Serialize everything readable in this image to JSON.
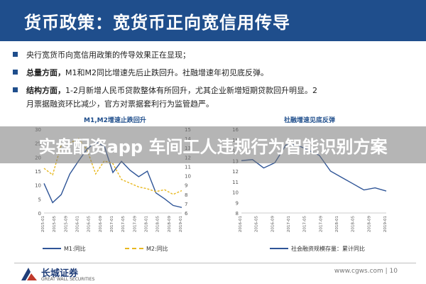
{
  "header": {
    "title": "货币政策：宽货币正向宽信用传导"
  },
  "bullets": {
    "b1": {
      "text": "央行宽货币向宽信用政策的传导效果正在显现；"
    },
    "b2": {
      "head": "总量方面，",
      "text": "M1和M2同比增速先后止跌回升。社融增速年初见底反弹。"
    },
    "b3": {
      "head": "结构方面，",
      "text": "1-2月新增人民币贷款整体有所回升，尤其企业新增短期贷款回升明显。2",
      "text2": "月票据融资环比减少，官方对票据套利行为监管趋严。"
    }
  },
  "overlay": {
    "text": "实盘配资app 车间工人违规行为智能识别方案"
  },
  "colors": {
    "brand": "#1f4e8c",
    "m1": "#2f5597",
    "m2": "#e8b820",
    "social": "#2f5597"
  },
  "chart_data": [
    {
      "type": "line",
      "title": "M1,M2增速止跌回升",
      "x": [
        "2015/1",
        "2015/4",
        "2015/7",
        "2015/10",
        "2016/1",
        "2016/4",
        "2016/7",
        "2016/10",
        "2017/1",
        "2017/4",
        "2017/7",
        "2017/10",
        "2018/1",
        "2018/4",
        "2018/7",
        "2018/10",
        "2019/1"
      ],
      "series": [
        {
          "name": "M1:同比",
          "axis": "left",
          "values": [
            10.6,
            3.7,
            6.6,
            14.0,
            18.6,
            22.9,
            25.4,
            24.0,
            14.5,
            18.5,
            15.3,
            13.0,
            15.0,
            7.2,
            5.1,
            2.7,
            2.0
          ]
        },
        {
          "name": "M2:同比",
          "axis": "right",
          "values": [
            10.8,
            10.1,
            13.3,
            13.5,
            14.0,
            12.8,
            10.2,
            11.6,
            11.3,
            9.6,
            9.2,
            8.8,
            8.6,
            8.3,
            8.5,
            8.0,
            8.4
          ]
        }
      ],
      "y_left": {
        "ticks": [
          "0",
          "5",
          "10",
          "15",
          "20",
          "25",
          "30"
        ],
        "ylim": [
          0,
          30
        ]
      },
      "y_right": {
        "ticks": [
          "6",
          "7",
          "8",
          "9",
          "10",
          "11",
          "12",
          "13",
          "14",
          "15"
        ],
        "ylim": [
          6,
          15
        ]
      },
      "x_ticks": [
        "2015-01",
        "2015-05",
        "2015-09",
        "2016-01",
        "2016-05",
        "2016-09",
        "2017-01",
        "2017-05",
        "2017-09",
        "2018-01",
        "2018-05",
        "2018-09",
        "2019-01"
      ]
    },
    {
      "type": "line",
      "title": "社融增速见底反弹",
      "x": [
        "2016-01",
        "2016-04",
        "2016-07",
        "2016-10",
        "2017-01",
        "2017-04",
        "2017-07",
        "2017-10",
        "2018-01",
        "2018-04",
        "2018-07",
        "2018-10",
        "2019-01",
        "2019-02"
      ],
      "series": [
        {
          "name": "社会融资规模存量：累计同比",
          "values": [
            13.0,
            13.1,
            12.3,
            12.8,
            14.5,
            14.5,
            14.0,
            13.5,
            12.0,
            11.4,
            10.8,
            10.2,
            10.4,
            10.1
          ]
        }
      ],
      "y": {
        "ticks": [
          "8",
          "9",
          "10",
          "11",
          "12",
          "13",
          "14",
          "15",
          "16"
        ],
        "ylim": [
          8,
          16
        ]
      },
      "x_ticks": [
        "2016-01",
        "2016-05",
        "2016-09",
        "2017-01",
        "2017-05",
        "2017-09",
        "2018-01",
        "2018-05",
        "2018-09",
        "2019-01"
      ]
    }
  ],
  "footer": {
    "company": "长城证券",
    "company_en": "GREAT WALL SECURITIES",
    "right": "www.cgws.com  |  10"
  }
}
